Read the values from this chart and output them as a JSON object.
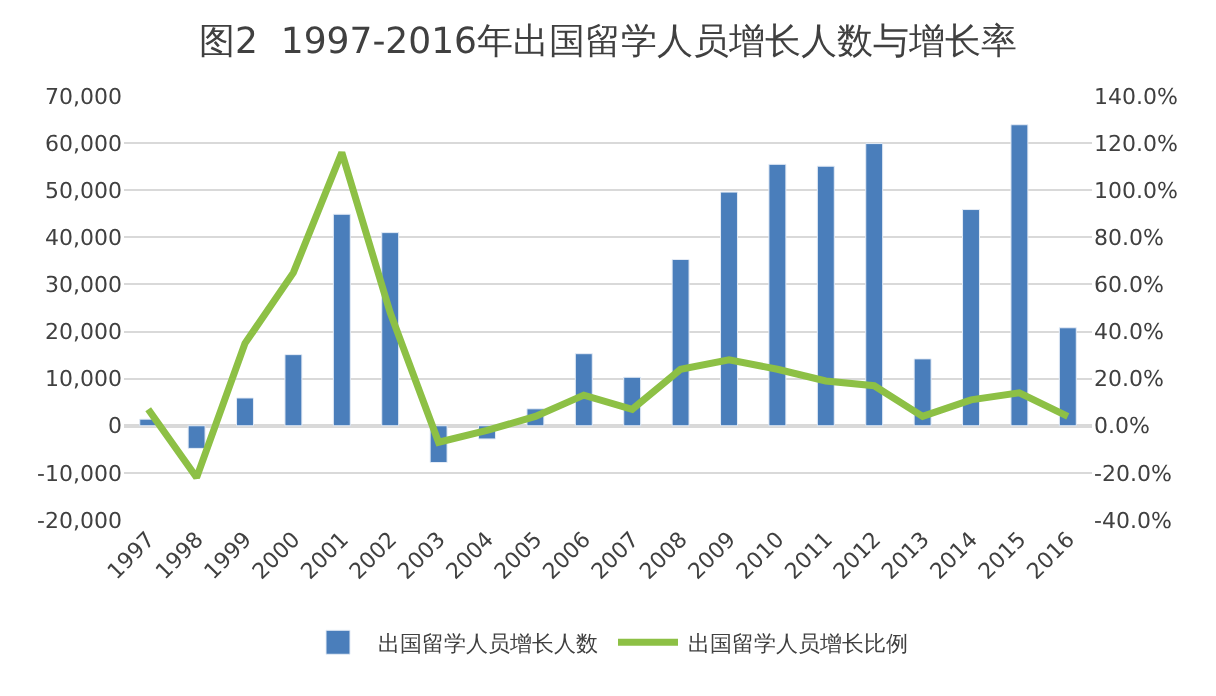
{
  "chart_data": {
    "type": "bar",
    "title": "图2  1997-2016年出国留学人员增长人数与增长率",
    "categories": [
      "1997",
      "1998",
      "1999",
      "2000",
      "2001",
      "2002",
      "2003",
      "2004",
      "2005",
      "2006",
      "2007",
      "2008",
      "2009",
      "2010",
      "2011",
      "2012",
      "2013",
      "2014",
      "2015",
      "2016"
    ],
    "series": [
      {
        "name": "出国留学人员增长人数",
        "color": "#4a7ebb",
        "values": [
          1400,
          -4800,
          5900,
          15100,
          44900,
          41000,
          -7800,
          -2800,
          3600,
          15300,
          10300,
          35300,
          49600,
          55500,
          55100,
          59900,
          14200,
          45900,
          63900,
          20800
        ]
      },
      {
        "name": "出国留学人员增长比例",
        "type": "line",
        "axis": "y2",
        "color": "#8dc045",
        "values": [
          7,
          -22,
          35,
          65,
          116,
          48,
          -7,
          -2,
          4,
          13,
          7,
          24,
          28,
          24,
          19,
          17,
          4,
          11,
          14,
          4
        ]
      }
    ],
    "ylim": [
      -20000,
      70000
    ],
    "yticks": [
      {
        "value": -20000,
        "label": "-20,000"
      },
      {
        "value": -10000,
        "label": "-10,000"
      },
      0,
      {
        "value": 10000,
        "label": "10,000"
      },
      {
        "value": 20000,
        "label": "20,000"
      },
      {
        "value": 30000,
        "label": "30,000"
      },
      {
        "value": 40000,
        "label": "40,000"
      },
      {
        "value": 50000,
        "label": "50,000"
      },
      {
        "value": 60000,
        "label": "60,000"
      },
      {
        "value": 70000,
        "label": "70,000"
      }
    ],
    "y2lim": [
      -40,
      140
    ],
    "y2ticks": [
      {
        "value": -40,
        "label": "-40.0%"
      },
      {
        "value": -20,
        "label": "-20.0%"
      },
      {
        "value": 0,
        "label": "0.0%"
      },
      {
        "value": 20,
        "label": "20.0%"
      },
      {
        "value": 40,
        "label": "40.0%"
      },
      {
        "value": 60,
        "label": "60.0%"
      },
      {
        "value": 80,
        "label": "80.0%"
      },
      {
        "value": 100,
        "label": "100.0%"
      },
      {
        "value": 120,
        "label": "120.0%"
      },
      {
        "value": 140,
        "label": "140.0%"
      }
    ],
    "grid": "y",
    "legend": "bottom",
    "marker": "none",
    "line_style": "solid"
  }
}
